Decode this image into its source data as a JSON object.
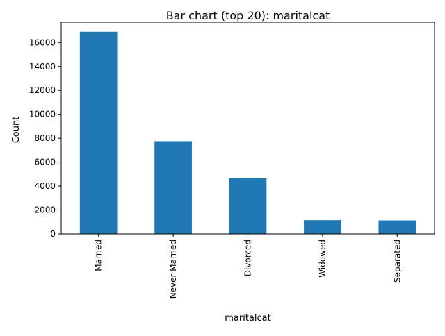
{
  "chart_data": {
    "type": "bar",
    "title": "Bar chart (top 20): maritalcat",
    "xlabel": "maritalcat",
    "ylabel": "Count",
    "categories": [
      "Married",
      "Never Married",
      "Divorced",
      "Widowed",
      "Separated"
    ],
    "values": [
      16900,
      7750,
      4670,
      1150,
      1130
    ],
    "ylim": [
      0,
      17700
    ],
    "yticks": [
      0,
      2000,
      4000,
      6000,
      8000,
      10000,
      12000,
      14000,
      16000
    ],
    "grid": false,
    "legend": "none",
    "colors": {
      "bar": "#1f77b4",
      "axis": "#000000",
      "background": "#ffffff"
    }
  }
}
